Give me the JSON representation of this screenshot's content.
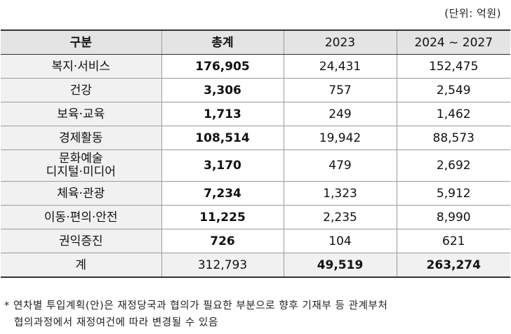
{
  "unit_note": "(단위: 억원)",
  "table": {
    "headers": [
      "구분",
      "총계",
      "2023",
      "2024 ~ 2027"
    ],
    "rows": [
      {
        "label": [
          "복지·서비스"
        ],
        "total": "176,905",
        "y2023": "24,431",
        "y2024_2027": "152,475"
      },
      {
        "label": [
          "건강"
        ],
        "total": "3,306",
        "y2023": "757",
        "y2024_2027": "2,549"
      },
      {
        "label": [
          "보육·교육"
        ],
        "total": "1,713",
        "y2023": "249",
        "y2024_2027": "1,462"
      },
      {
        "label": [
          "경제활동"
        ],
        "total": "108,514",
        "y2023": "19,942",
        "y2024_2027": "88,573"
      },
      {
        "label": [
          "문화예술",
          "디지털·미디어"
        ],
        "total": "3,170",
        "y2023": "479",
        "y2024_2027": "2,692"
      },
      {
        "label": [
          "체육·관광"
        ],
        "total": "7,234",
        "y2023": "1,323",
        "y2024_2027": "5,912"
      },
      {
        "label": [
          "이동·편의·안전"
        ],
        "total": "11,225",
        "y2023": "2,235",
        "y2024_2027": "8,990"
      },
      {
        "label": [
          "권익증진"
        ],
        "total": "726",
        "y2023": "104",
        "y2024_2027": "621"
      }
    ],
    "sum_row": {
      "label": "계",
      "total": "312,793",
      "y2023": "49,519",
      "y2024_2027": "263,274"
    }
  },
  "footnote": {
    "line1": "* 연차별 투입계획(안)은 재정당국과 협의가 필요한 부분으로 향후 기재부 등 관계부처",
    "line2": "협의과정에서 재정여건에 따라 변경될 수 있음"
  }
}
